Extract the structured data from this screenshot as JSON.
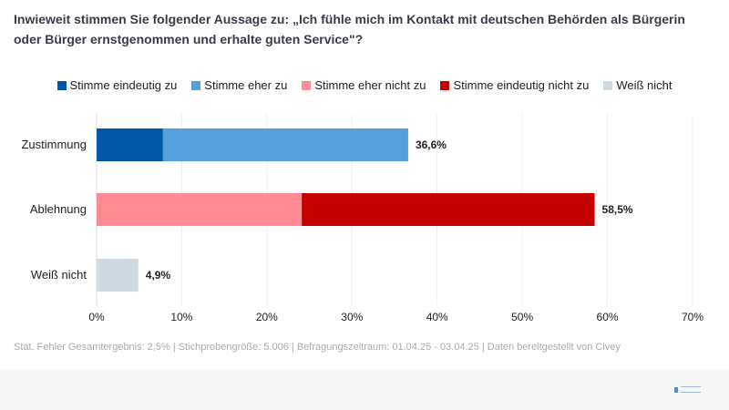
{
  "chart_data": {
    "type": "bar",
    "orientation": "horizontal",
    "stacked": true,
    "title": "Inwieweit stimmen Sie folgender Aussage zu: „Ich fühle mich im Kontakt mit deutschen Behörden als Bürgerin oder Bürger ernstgenommen und erhalte guten Service\"?",
    "categories": [
      "Zustimmung",
      "Ablehnung",
      "Weiß nicht"
    ],
    "series": [
      {
        "name": "Stimme eindeutig zu",
        "color": "#0057a8",
        "values": [
          7.8,
          0,
          0
        ]
      },
      {
        "name": "Stimme eher zu",
        "color": "#55a0da",
        "values": [
          28.8,
          0,
          0
        ]
      },
      {
        "name": "Stimme eher nicht zu",
        "color": "#ff8a94",
        "values": [
          0,
          24.1,
          0
        ]
      },
      {
        "name": "Stimme eindeutig nicht zu",
        "color": "#c50000",
        "values": [
          0,
          34.4,
          0
        ]
      },
      {
        "name": "Weiß nicht",
        "color": "#cfd9e0",
        "values": [
          0,
          0,
          4.9
        ]
      }
    ],
    "totals": [
      "36,6%",
      "58,5%",
      "4,9%"
    ],
    "xlim": [
      0,
      70
    ],
    "xticks": [
      "0%",
      "10%",
      "20%",
      "30%",
      "40%",
      "50%",
      "60%",
      "70%"
    ],
    "grid": true,
    "legend": "top"
  },
  "footer": "Stat. Fehler Gesamtergebnis: 2,5% | Stichprobengröße: 5.006 | Befragungszeitraum: 01.04.25 - 03.04.25 | Daten bereitgestellt von Civey"
}
